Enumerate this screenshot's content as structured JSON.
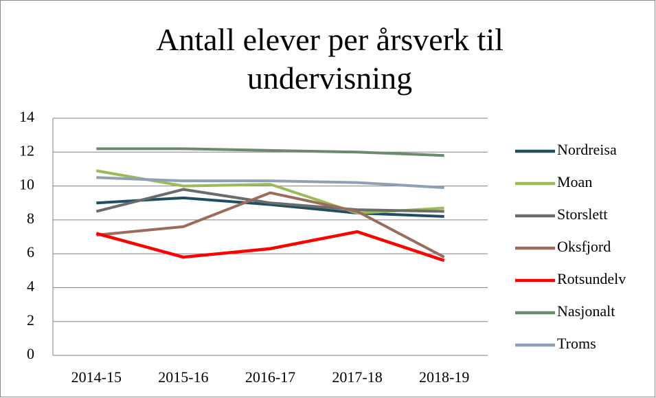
{
  "chart_data": {
    "type": "line",
    "title": "Antall elever per årsverk til undervisning",
    "categories": [
      "2014-15",
      "2015-16",
      "2016-17",
      "2017-18",
      "2018-19"
    ],
    "ylim": [
      0,
      14
    ],
    "yticks": [
      0,
      2,
      4,
      6,
      8,
      10,
      12,
      14
    ],
    "grid": true,
    "legend": "right",
    "series": [
      {
        "name": "Nordreisa",
        "color": "#1f4e5f",
        "values": [
          9.0,
          9.3,
          8.9,
          8.4,
          8.2
        ]
      },
      {
        "name": "Moan",
        "color": "#9bbb59",
        "values": [
          10.9,
          10.0,
          10.1,
          8.4,
          8.7
        ]
      },
      {
        "name": "Storslett",
        "color": "#6b6b6b",
        "values": [
          8.5,
          9.8,
          9.0,
          8.6,
          8.5
        ]
      },
      {
        "name": "Oksfjord",
        "color": "#9c6b5e",
        "values": [
          7.1,
          7.6,
          9.6,
          8.5,
          5.8
        ]
      },
      {
        "name": "Rotsundelv",
        "color": "#ff0000",
        "values": [
          7.2,
          5.8,
          6.3,
          7.3,
          5.6
        ]
      },
      {
        "name": "Nasjonalt",
        "color": "#6b8a6e",
        "values": [
          12.2,
          12.2,
          12.1,
          12.0,
          11.8
        ]
      },
      {
        "name": "Troms",
        "color": "#8ea0b4",
        "values": [
          10.5,
          10.3,
          10.3,
          10.2,
          9.9
        ]
      }
    ]
  }
}
